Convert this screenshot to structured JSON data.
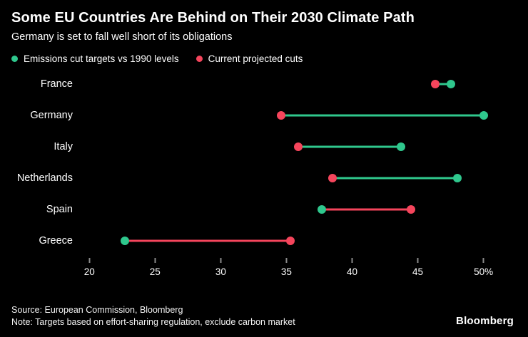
{
  "header": {
    "title": "Some EU Countries Are Behind on Their 2030 Climate Path",
    "subtitle": "Germany is set to fall well short of its obligations"
  },
  "legend": [
    {
      "label": "Emissions cut targets vs 1990 levels",
      "color": "#2fc78d"
    },
    {
      "label": "Current projected cuts",
      "color": "#f5455c"
    }
  ],
  "chart_data": {
    "type": "dumbbell",
    "categories": [
      "France",
      "Germany",
      "Italy",
      "Netherlands",
      "Spain",
      "Greece"
    ],
    "series": [
      {
        "name": "Emissions cut targets vs 1990 levels",
        "color": "#2fc78d",
        "values": [
          47.5,
          50,
          43.7,
          48,
          37.7,
          22.7
        ]
      },
      {
        "name": "Current projected cuts",
        "color": "#f5455c",
        "values": [
          46.3,
          34.6,
          35.9,
          38.5,
          44.5,
          35.3
        ]
      }
    ],
    "xaxis": {
      "min": 19.5,
      "max": 52.3,
      "ticks": [
        20,
        25,
        30,
        35,
        40,
        45,
        50
      ],
      "tick_labels": [
        "20",
        "25",
        "30",
        "35",
        "40",
        "45",
        "50%"
      ]
    },
    "unit": "%"
  },
  "footer": {
    "source": "Source: European Commission, Bloomberg",
    "note": "Note: Targets based on effort-sharing regulation, exclude carbon market",
    "brand": "Bloomberg"
  }
}
